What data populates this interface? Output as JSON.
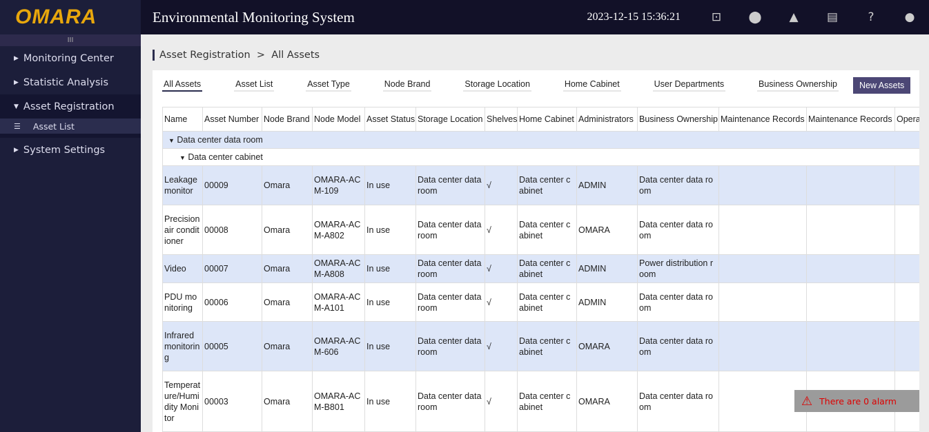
{
  "app": {
    "logo": "OMARA",
    "title": "Environmental Monitoring System",
    "datetime": "2023-12-15 15:36:21",
    "collapse": "III"
  },
  "top_icons": [
    "monitor-icon",
    "location-icon",
    "warning-icon",
    "calendar-icon",
    "help-icon",
    "user-icon"
  ],
  "sidebar": {
    "items": [
      {
        "label": "Monitoring Center"
      },
      {
        "label": "Statistic Analysis"
      },
      {
        "label": "Asset Registration"
      },
      {
        "label": "Asset List"
      },
      {
        "label": "System Settings"
      }
    ]
  },
  "breadcrumb": {
    "parent": "Asset Registration",
    "sep": ">",
    "current": "All Assets"
  },
  "tabs": [
    "All Assets",
    "Asset List",
    "Asset Type",
    "Node Brand",
    "Storage Location",
    "Home Cabinet",
    "User Departments",
    "Business Ownership"
  ],
  "new_button": "New Assets",
  "table": {
    "columns": [
      "Name",
      "Asset Number",
      "Node Brand",
      "Node Model",
      "Asset Status",
      "Storage Location",
      "Shelves",
      "Home Cabinet",
      "Administrators",
      "Business Ownership",
      "Maintenance Records",
      "Maintenance Records",
      "Operating"
    ],
    "group1": "Data center data room",
    "group2": "Data center cabinet",
    "rows": [
      [
        "Leakage monitor",
        "00009",
        "Omara",
        "OMARA-ACM-109",
        "In use",
        "Data center data room",
        "√",
        "Data center cabinet",
        "ADMIN",
        "Data center data room",
        "",
        "",
        ""
      ],
      [
        "Precision air conditioner",
        "00008",
        "Omara",
        "OMARA-ACM-A802",
        "In use",
        "Data center data room",
        "√",
        "Data center cabinet",
        "OMARA",
        "Data center data room",
        "",
        "",
        ""
      ],
      [
        "Video",
        "00007",
        "Omara",
        "OMARA-ACM-A808",
        "In use",
        "Data center data room",
        "√",
        "Data center cabinet",
        "ADMIN",
        "Power distribution room",
        "",
        "",
        ""
      ],
      [
        "PDU monitoring",
        "00006",
        "Omara",
        "OMARA-ACM-A101",
        "In use",
        "Data center data room",
        "√",
        "Data center cabinet",
        "ADMIN",
        "Data center data room",
        "",
        "",
        ""
      ],
      [
        "Infrared monitoring",
        "00005",
        "Omara",
        "OMARA-ACM-606",
        "In use",
        "Data center data room",
        "√",
        "Data center cabinet",
        "OMARA",
        "Data center data room",
        "",
        "",
        ""
      ],
      [
        "Temperature/Humidity Monitor",
        "00003",
        "Omara",
        "OMARA-ACM-B801",
        "In use",
        "Data center data room",
        "√",
        "Data center cabinet",
        "OMARA",
        "Data center data room",
        "",
        "",
        ""
      ]
    ]
  },
  "alarm": {
    "text": "There are 0 alarm",
    "color": "#dd0000"
  }
}
